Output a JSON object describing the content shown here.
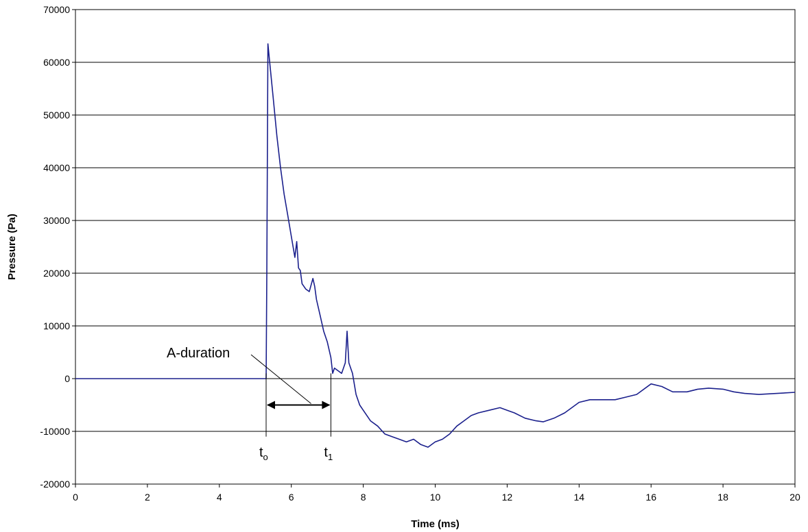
{
  "chart_data": {
    "type": "line",
    "title": "",
    "xlabel": "Time (ms)",
    "ylabel": "Pressure (Pa)",
    "xlim": [
      0,
      20
    ],
    "ylim": [
      -20000,
      70000
    ],
    "x_ticks": [
      0,
      2,
      4,
      6,
      8,
      10,
      12,
      14,
      16,
      18,
      20
    ],
    "y_ticks": [
      -20000,
      -10000,
      0,
      10000,
      20000,
      30000,
      40000,
      50000,
      60000,
      70000
    ],
    "grid": "horizontal",
    "legend": "none",
    "series": [
      {
        "color": "#1a1f8c",
        "x": [
          0,
          1,
          2,
          3,
          4,
          5,
          5.3,
          5.32,
          5.35,
          5.4,
          5.5,
          5.6,
          5.7,
          5.8,
          5.9,
          6.0,
          6.1,
          6.15,
          6.2,
          6.25,
          6.3,
          6.4,
          6.5,
          6.6,
          6.65,
          6.7,
          6.8,
          6.9,
          7.0,
          7.1,
          7.15,
          7.2,
          7.3,
          7.4,
          7.5,
          7.55,
          7.6,
          7.7,
          7.8,
          7.9,
          8.0,
          8.2,
          8.4,
          8.6,
          8.8,
          9.0,
          9.2,
          9.4,
          9.6,
          9.8,
          10.0,
          10.2,
          10.4,
          10.6,
          10.8,
          11.0,
          11.2,
          11.5,
          11.8,
          12.0,
          12.2,
          12.5,
          12.8,
          13.0,
          13.3,
          13.6,
          14.0,
          14.3,
          14.6,
          15.0,
          15.3,
          15.6,
          16.0,
          16.3,
          16.6,
          17.0,
          17.3,
          17.6,
          18.0,
          18.3,
          18.6,
          19.0,
          19.5,
          20.0
        ],
        "y": [
          0,
          0,
          0,
          0,
          0,
          0,
          0,
          20000,
          63500,
          60000,
          53000,
          46000,
          40000,
          35000,
          31000,
          27000,
          23000,
          26000,
          21000,
          20500,
          18000,
          17000,
          16500,
          19000,
          17500,
          15000,
          12000,
          9000,
          7000,
          4000,
          1000,
          2000,
          1500,
          1000,
          3000,
          9000,
          3000,
          1000,
          -3000,
          -5000,
          -6000,
          -8000,
          -9000,
          -10500,
          -11000,
          -11500,
          -12000,
          -11500,
          -12500,
          -13000,
          -12000,
          -11500,
          -10500,
          -9000,
          -8000,
          -7000,
          -6500,
          -6000,
          -5500,
          -6000,
          -6500,
          -7500,
          -8000,
          -8200,
          -7500,
          -6500,
          -4500,
          -4000,
          -4000,
          -4000,
          -3500,
          -3000,
          -1000,
          -1500,
          -2500,
          -2500,
          -2000,
          -1800,
          -2000,
          -2500,
          -2800,
          -3000,
          -2800,
          -2600
        ]
      }
    ],
    "annotations": [
      {
        "text": "A-duration"
      },
      {
        "text": "t",
        "sub": "o",
        "x": 5.3
      },
      {
        "text": "t",
        "sub": "1",
        "x": 7.1
      }
    ]
  }
}
